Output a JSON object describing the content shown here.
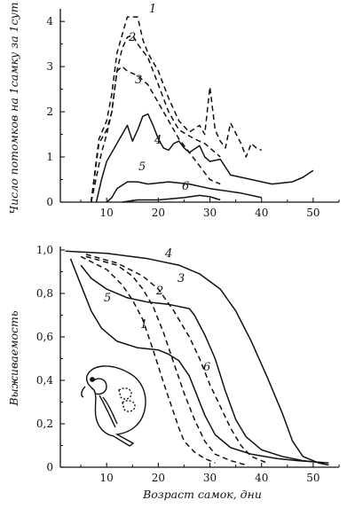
{
  "chart_data": [
    {
      "type": "line",
      "title": "",
      "xlabel": "",
      "ylabel": "Число потомков на 1самку за 1сут",
      "xlim": [
        0,
        55
      ],
      "ylim": [
        0,
        4.2
      ],
      "xticks": [
        10,
        20,
        30,
        40,
        50
      ],
      "yticks": [
        0,
        1,
        2,
        3,
        4
      ],
      "grid": false,
      "series": [
        {
          "label": "1",
          "style": "dashed",
          "points": [
            [
              7,
              0
            ],
            [
              8.5,
              1.4
            ],
            [
              10,
              1.8
            ],
            [
              11,
              2.4
            ],
            [
              12,
              3.3
            ],
            [
              13,
              3.7
            ],
            [
              14,
              4.1
            ],
            [
              16,
              4.1
            ],
            [
              17,
              3.6
            ],
            [
              18,
              3.3
            ],
            [
              20,
              2.9
            ],
            [
              22,
              2.3
            ],
            [
              24,
              1.8
            ],
            [
              26,
              1.55
            ],
            [
              28,
              1.7
            ],
            [
              29,
              1.5
            ],
            [
              30,
              2.55
            ],
            [
              31,
              1.6
            ],
            [
              32,
              1.35
            ],
            [
              33,
              1.2
            ],
            [
              34,
              1.75
            ],
            [
              36,
              1.3
            ],
            [
              37,
              1.0
            ],
            [
              38,
              1.3
            ],
            [
              39,
              1.2
            ],
            [
              40,
              1.15
            ]
          ]
        },
        {
          "label": "2",
          "style": "dashed",
          "points": [
            [
              7,
              0
            ],
            [
              8.5,
              1.3
            ],
            [
              10,
              1.6
            ],
            [
              11,
              2.0
            ],
            [
              12,
              2.9
            ],
            [
              13,
              3.4
            ],
            [
              14,
              3.65
            ],
            [
              15,
              3.7
            ],
            [
              16,
              3.5
            ],
            [
              18,
              3.2
            ],
            [
              20,
              2.6
            ],
            [
              22,
              2.0
            ],
            [
              24,
              1.6
            ],
            [
              27,
              1.4
            ],
            [
              29,
              1.3
            ],
            [
              31,
              1.1
            ],
            [
              32,
              1.0
            ]
          ]
        },
        {
          "label": "3",
          "style": "dashed",
          "points": [
            [
              7,
              0
            ],
            [
              9,
              1.1
            ],
            [
              10,
              1.5
            ],
            [
              11,
              2.0
            ],
            [
              12,
              2.9
            ],
            [
              13,
              3.0
            ],
            [
              14,
              2.9
            ],
            [
              16,
              2.8
            ],
            [
              18,
              2.6
            ],
            [
              20,
              2.2
            ],
            [
              22,
              1.8
            ],
            [
              24,
              1.4
            ],
            [
              26,
              1.1
            ],
            [
              28,
              0.8
            ],
            [
              30,
              0.5
            ],
            [
              32,
              0.4
            ]
          ]
        },
        {
          "label": "4",
          "style": "solid",
          "points": [
            [
              8,
              0
            ],
            [
              9,
              0.5
            ],
            [
              10,
              0.9
            ],
            [
              12,
              1.3
            ],
            [
              13,
              1.5
            ],
            [
              14,
              1.7
            ],
            [
              15,
              1.35
            ],
            [
              16,
              1.6
            ],
            [
              17,
              1.9
            ],
            [
              18,
              1.95
            ],
            [
              19,
              1.7
            ],
            [
              20,
              1.4
            ],
            [
              21,
              1.2
            ],
            [
              22,
              1.15
            ],
            [
              23,
              1.3
            ],
            [
              24,
              1.35
            ],
            [
              25,
              1.2
            ],
            [
              26,
              1.1
            ],
            [
              28,
              1.25
            ],
            [
              29,
              1.0
            ],
            [
              30,
              0.9
            ],
            [
              32,
              0.95
            ],
            [
              34,
              0.6
            ],
            [
              38,
              0.5
            ],
            [
              42,
              0.4
            ],
            [
              46,
              0.45
            ],
            [
              48,
              0.55
            ],
            [
              50,
              0.7
            ]
          ]
        },
        {
          "label": "5",
          "style": "solid",
          "points": [
            [
              10,
              0
            ],
            [
              11,
              0.1
            ],
            [
              12,
              0.3
            ],
            [
              14,
              0.45
            ],
            [
              16,
              0.45
            ],
            [
              18,
              0.4
            ],
            [
              22,
              0.45
            ],
            [
              26,
              0.4
            ],
            [
              30,
              0.3
            ],
            [
              36,
              0.2
            ],
            [
              40,
              0.1
            ]
          ]
        },
        {
          "label": "6",
          "style": "solid",
          "points": [
            [
              13,
              0
            ],
            [
              16,
              0.05
            ],
            [
              20,
              0.05
            ],
            [
              25,
              0.1
            ],
            [
              28,
              0.15
            ],
            [
              30,
              0.12
            ],
            [
              32,
              0.05
            ]
          ]
        }
      ]
    },
    {
      "type": "line",
      "title": "",
      "xlabel": "Возраст самок, дни",
      "ylabel": "Выживаемость",
      "xlim": [
        0,
        55
      ],
      "ylim": [
        0,
        1.0
      ],
      "xticks": [
        10,
        20,
        30,
        40,
        50
      ],
      "yticks": [
        0,
        0.2,
        0.4,
        0.6,
        0.8,
        1.0
      ],
      "xtick_labels": [
        "10",
        "20",
        "30",
        "40",
        "50"
      ],
      "ytick_labels": [
        "0",
        "0,2",
        "0,4",
        "0,6",
        "0,8",
        "1,0"
      ],
      "grid": false,
      "series": [
        {
          "label": "4",
          "style": "solid",
          "points": [
            [
              2,
              0.995
            ],
            [
              10,
              0.985
            ],
            [
              18,
              0.96
            ],
            [
              24,
              0.93
            ],
            [
              28,
              0.89
            ],
            [
              32,
              0.82
            ],
            [
              35,
              0.72
            ],
            [
              38,
              0.58
            ],
            [
              41,
              0.42
            ],
            [
              44,
              0.25
            ],
            [
              46,
              0.12
            ],
            [
              48,
              0.05
            ],
            [
              51,
              0.02
            ],
            [
              53,
              0.01
            ]
          ]
        },
        {
          "label": "3",
          "style": "dashed",
          "points": [
            [
              6,
              0.98
            ],
            [
              12,
              0.94
            ],
            [
              17,
              0.88
            ],
            [
              20,
              0.82
            ],
            [
              23,
              0.72
            ],
            [
              26,
              0.6
            ],
            [
              28,
              0.5
            ],
            [
              30,
              0.38
            ],
            [
              32,
              0.28
            ],
            [
              34,
              0.18
            ],
            [
              36,
              0.1
            ],
            [
              38,
              0.05
            ],
            [
              41,
              0.02
            ]
          ]
        },
        {
          "label": "2",
          "style": "dashed",
          "points": [
            [
              6,
              0.97
            ],
            [
              12,
              0.93
            ],
            [
              15,
              0.88
            ],
            [
              17,
              0.82
            ],
            [
              19,
              0.74
            ],
            [
              21,
              0.62
            ],
            [
              23,
              0.48
            ],
            [
              25,
              0.34
            ],
            [
              27,
              0.22
            ],
            [
              29,
              0.12
            ],
            [
              31,
              0.06
            ],
            [
              34,
              0.03
            ],
            [
              37,
              0.01
            ]
          ]
        },
        {
          "label": "1",
          "style": "dashed",
          "points": [
            [
              5,
              0.97
            ],
            [
              10,
              0.91
            ],
            [
              13,
              0.84
            ],
            [
              15,
              0.77
            ],
            [
              17,
              0.68
            ],
            [
              19,
              0.54
            ],
            [
              21,
              0.39
            ],
            [
              22,
              0.32
            ],
            [
              24,
              0.18
            ],
            [
              25,
              0.12
            ],
            [
              27,
              0.07
            ],
            [
              29,
              0.04
            ],
            [
              31,
              0.02
            ]
          ]
        },
        {
          "label": "5",
          "style": "solid",
          "points": [
            [
              5,
              0.93
            ],
            [
              7,
              0.87
            ],
            [
              10,
              0.82
            ],
            [
              14,
              0.78
            ],
            [
              18,
              0.76
            ],
            [
              22,
              0.75
            ],
            [
              26,
              0.73
            ],
            [
              27,
              0.7
            ],
            [
              29,
              0.61
            ],
            [
              31,
              0.5
            ],
            [
              33,
              0.35
            ],
            [
              35,
              0.22
            ],
            [
              37,
              0.14
            ],
            [
              40,
              0.08
            ],
            [
              44,
              0.05
            ],
            [
              48,
              0.03
            ],
            [
              52,
              0.02
            ]
          ]
        },
        {
          "label": "6",
          "style": "solid",
          "points": [
            [
              3,
              0.96
            ],
            [
              5,
              0.84
            ],
            [
              7,
              0.72
            ],
            [
              9,
              0.64
            ],
            [
              12,
              0.58
            ],
            [
              16,
              0.55
            ],
            [
              20,
              0.54
            ],
            [
              22,
              0.52
            ],
            [
              24,
              0.49
            ],
            [
              26,
              0.42
            ],
            [
              27,
              0.36
            ],
            [
              29,
              0.24
            ],
            [
              31,
              0.15
            ],
            [
              34,
              0.09
            ],
            [
              38,
              0.06
            ],
            [
              43,
              0.04
            ],
            [
              47,
              0.03
            ],
            [
              53,
              0.02
            ]
          ]
        }
      ]
    }
  ]
}
